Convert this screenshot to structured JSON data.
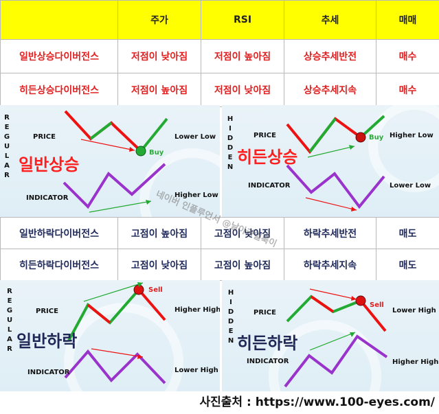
{
  "header": {
    "columns": [
      "",
      "주가",
      "RSI",
      "추세",
      "매매"
    ]
  },
  "bullish_rows": [
    {
      "name": "일반상승다이버전스",
      "price": "저점이 낮아짐",
      "rsi": "저점이 높아짐",
      "trend": "상승추세반전",
      "action": "매수"
    },
    {
      "name": "히든상승다이버전스",
      "price": "저점이 높아짐",
      "rsi": "저점이 낮아짐",
      "trend": "상승추세지속",
      "action": "매수"
    }
  ],
  "bearish_rows": [
    {
      "name": "일반하락다이버전스",
      "price": "고점이 높아짐",
      "rsi": "고점이 낮아짐",
      "trend": "하락추세반전",
      "action": "매도"
    },
    {
      "name": "히든하락다이버전스",
      "price": "고점이 낮아짐",
      "rsi": "고점이 높아짐",
      "trend": "하락추세지속",
      "action": "매도"
    }
  ],
  "panels": {
    "regular_bull": {
      "vertical": "REGULAR",
      "price": "PRICE",
      "indicator": "INDICATOR",
      "title": "일반상승",
      "signal": "Buy",
      "price_note": "Lower Low",
      "indicator_note": "Higher Low"
    },
    "hidden_bull": {
      "vertical": "HIDDEN",
      "price": "PRICE",
      "indicator": "INDICATOR",
      "title": "히든상승",
      "signal": "Buy",
      "price_note": "Higher Low",
      "indicator_note": "Lower Low"
    },
    "regular_bear": {
      "vertical": "REGULAR",
      "price": "PRICE",
      "indicator": "INDICATOR",
      "title": "일반하락",
      "signal": "Sell",
      "price_note": "Higher High",
      "indicator_note": "Lower High"
    },
    "hidden_bear": {
      "vertical": "HIDDEN",
      "price": "PRICE",
      "indicator": "INDICATOR",
      "title": "히든하락",
      "signal": "Sell",
      "price_note": "Lower High",
      "indicator_note": "Higher High"
    }
  },
  "watermark": "네이버 인플루언서 @날아라얼룩이",
  "source": "사진출처 : https://www.100-eyes.com/",
  "colors": {
    "header_bg": "#ffff00",
    "bull_text": "#e02020",
    "bear_text": "#1f2a5a",
    "up_line": "#22aa33",
    "down_line": "#ee1111",
    "indicator_line": "#9933cc"
  }
}
